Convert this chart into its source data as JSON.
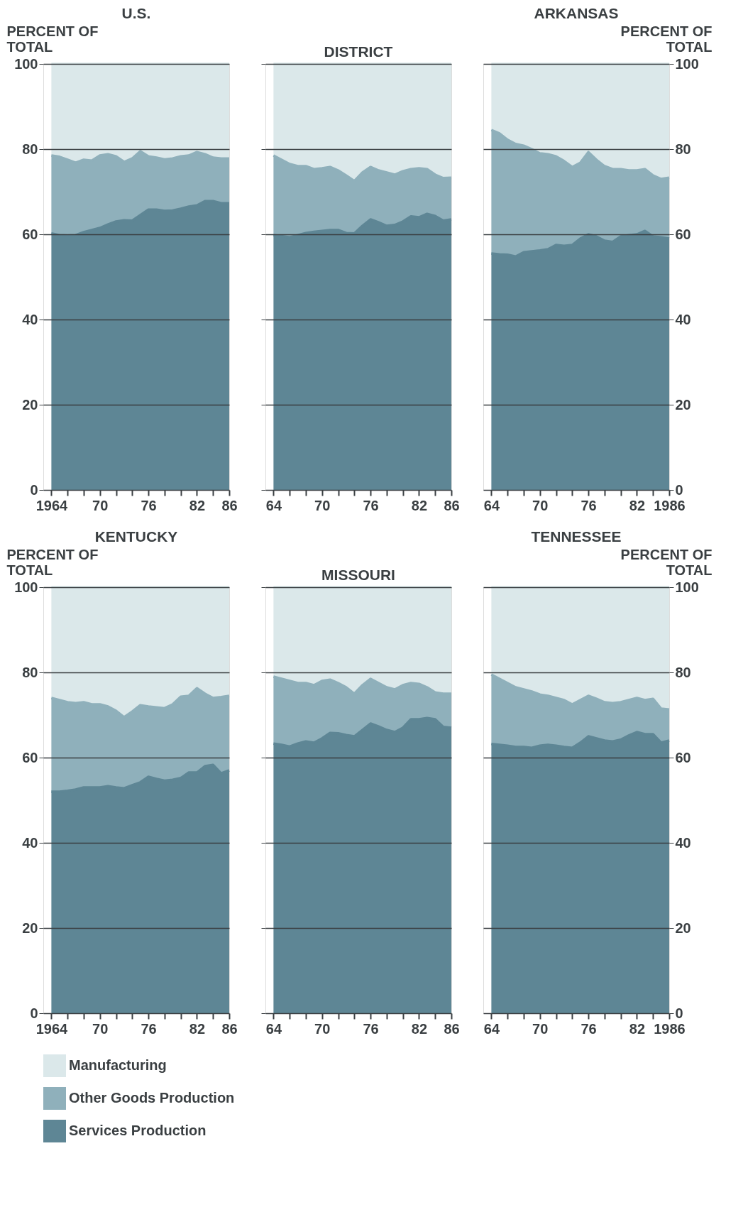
{
  "chart_data": [
    {
      "type": "area",
      "title": "U.S.",
      "ylabel": "PERCENT OF TOTAL",
      "stacked": true,
      "grid": "y",
      "x": [
        1964,
        1965,
        1966,
        1967,
        1968,
        1969,
        1970,
        1971,
        1972,
        1973,
        1974,
        1975,
        1976,
        1977,
        1978,
        1979,
        1980,
        1981,
        1982,
        1983,
        1984,
        1985,
        1986
      ],
      "xlim": [
        1963,
        1986
      ],
      "xticks": [
        {
          "value": 1964,
          "label": "1964"
        },
        {
          "value": 1966,
          "label": null
        },
        {
          "value": 1968,
          "label": null
        },
        {
          "value": 1970,
          "label": "70"
        },
        {
          "value": 1972,
          "label": null
        },
        {
          "value": 1974,
          "label": null
        },
        {
          "value": 1976,
          "label": "76"
        },
        {
          "value": 1978,
          "label": null
        },
        {
          "value": 1980,
          "label": null
        },
        {
          "value": 1982,
          "label": "82"
        },
        {
          "value": 1984,
          "label": null
        },
        {
          "value": 1986,
          "label": "86"
        }
      ],
      "ylim": [
        0,
        100
      ],
      "yticks": [
        0,
        20,
        40,
        60,
        80,
        100
      ],
      "series": [
        {
          "color": "#5e8695",
          "values": [
            60.2,
            59.8,
            59.7,
            59.8,
            60.5,
            61,
            61.5,
            62.3,
            63,
            63.3,
            63.2,
            64.5,
            65.8,
            65.8,
            65.5,
            65.6,
            66,
            66.5,
            66.8,
            67.8,
            67.8,
            67.3,
            67.3
          ]
        },
        {
          "color": "#8fb0bb",
          "values": [
            18.3,
            18.4,
            17.8,
            17.0,
            17.0,
            16.3,
            17.0,
            16.5,
            15.3,
            13.7,
            14.6,
            15.0,
            12.5,
            12.2,
            12.1,
            12.2,
            12.3,
            12.0,
            12.5,
            11.0,
            10.2,
            10.5,
            10.5
          ]
        },
        {
          "color": "#dbe8ea",
          "values": [
            21.5,
            21.8,
            22.5,
            23.2,
            22.5,
            22.7,
            21.5,
            21.2,
            21.7,
            23,
            22.2,
            20.5,
            21.7,
            22,
            22.4,
            22.2,
            21.7,
            21.5,
            20.7,
            21.2,
            22,
            22.2,
            22.2
          ]
        }
      ]
    },
    {
      "type": "area",
      "title": "DISTRICT",
      "stacked": true,
      "grid": "y",
      "tick_labels": "x",
      "x": [
        1964,
        1965,
        1966,
        1967,
        1968,
        1969,
        1970,
        1971,
        1972,
        1973,
        1974,
        1975,
        1976,
        1977,
        1978,
        1979,
        1980,
        1981,
        1982,
        1983,
        1984,
        1985,
        1986
      ],
      "xlim": [
        1963,
        1986
      ],
      "xticks": [
        {
          "value": 1964,
          "label": "64"
        },
        {
          "value": 1966,
          "label": null
        },
        {
          "value": 1968,
          "label": null
        },
        {
          "value": 1970,
          "label": "70"
        },
        {
          "value": 1972,
          "label": null
        },
        {
          "value": 1974,
          "label": null
        },
        {
          "value": 1976,
          "label": "76"
        },
        {
          "value": 1978,
          "label": null
        },
        {
          "value": 1980,
          "label": null
        },
        {
          "value": 1982,
          "label": "82"
        },
        {
          "value": 1984,
          "label": null
        },
        {
          "value": 1986,
          "label": "86"
        }
      ],
      "ylim": [
        0,
        100
      ],
      "yticks": [
        0,
        20,
        40,
        60,
        80,
        100
      ],
      "series": [
        {
          "color": "#5e8695",
          "values": [
            59.8,
            59.6,
            59.3,
            59.8,
            60.3,
            60.6,
            60.8,
            61,
            61,
            60.3,
            60.2,
            62,
            63.5,
            62.8,
            62,
            62.2,
            63,
            64.2,
            64,
            64.8,
            64.3,
            63.2,
            63.5
          ]
        },
        {
          "color": "#8fb0bb",
          "values": [
            18.7,
            17.9,
            17.2,
            16.2,
            15.7,
            14.7,
            14.7,
            14.8,
            14.0,
            13.5,
            12.3,
            12.5,
            12.3,
            12.2,
            12.5,
            11.8,
            11.8,
            11.1,
            11.5,
            10.5,
            9.7,
            10.0,
            9.8
          ]
        },
        {
          "color": "#dbe8ea",
          "values": [
            21.5,
            22.5,
            23.5,
            24,
            24,
            24.7,
            24.5,
            24.2,
            25,
            26.2,
            27.5,
            25.5,
            24.2,
            25,
            25.5,
            26,
            25.2,
            24.7,
            24.5,
            24.7,
            26,
            26.8,
            26.7
          ]
        }
      ]
    },
    {
      "type": "area",
      "title": "ARKANSAS",
      "y2label": "PERCENT OF TOTAL",
      "stacked": true,
      "grid": "y",
      "x": [
        1964,
        1965,
        1966,
        1967,
        1968,
        1969,
        1970,
        1971,
        1972,
        1973,
        1974,
        1975,
        1976,
        1977,
        1978,
        1979,
        1980,
        1981,
        1982,
        1983,
        1984,
        1985,
        1986
      ],
      "xlim": [
        1963,
        1986
      ],
      "xticks": [
        {
          "value": 1964,
          "label": "64"
        },
        {
          "value": 1966,
          "label": null
        },
        {
          "value": 1968,
          "label": null
        },
        {
          "value": 1970,
          "label": "70"
        },
        {
          "value": 1972,
          "label": null
        },
        {
          "value": 1974,
          "label": null
        },
        {
          "value": 1976,
          "label": "76"
        },
        {
          "value": 1978,
          "label": null
        },
        {
          "value": 1980,
          "label": null
        },
        {
          "value": 1982,
          "label": "82"
        },
        {
          "value": 1984,
          "label": null
        },
        {
          "value": 1986,
          "label": "1986"
        }
      ],
      "y2lim": [
        0,
        100
      ],
      "y2ticks": [
        0,
        20,
        40,
        60,
        80,
        100
      ],
      "series": [
        {
          "color": "#5e8695",
          "axis": "y2",
          "values": [
            55.5,
            55.3,
            55.2,
            54.8,
            55.8,
            56,
            56.2,
            56.5,
            57.5,
            57.3,
            57.5,
            59,
            60,
            59.5,
            58.5,
            58.2,
            59.5,
            59.8,
            60,
            60.8,
            59.5,
            59.3,
            59
          ]
        },
        {
          "color": "#8fb0bb",
          "axis": "y2",
          "values": [
            29.0,
            28.4,
            27.0,
            26.4,
            25.0,
            24.0,
            22.8,
            22.3,
            20.8,
            19.9,
            18.3,
            17.8,
            19.3,
            18.0,
            17.5,
            17.1,
            15.8,
            15.2,
            15.0,
            14.5,
            14.3,
            13.7,
            14.3
          ]
        },
        {
          "color": "#dbe8ea",
          "axis": "y2",
          "values": [
            15.5,
            16.3,
            17.8,
            18.8,
            19.2,
            20,
            21,
            21.2,
            21.7,
            22.8,
            24.2,
            23.2,
            20.7,
            22.5,
            24,
            24.7,
            24.7,
            25,
            25,
            24.7,
            26.2,
            27,
            26.7
          ]
        }
      ]
    },
    {
      "type": "area",
      "title": "KENTUCKY",
      "ylabel": "PERCENT OF TOTAL",
      "stacked": true,
      "grid": "y",
      "legend": "bottom",
      "x": [
        1964,
        1965,
        1966,
        1967,
        1968,
        1969,
        1970,
        1971,
        1972,
        1973,
        1974,
        1975,
        1976,
        1977,
        1978,
        1979,
        1980,
        1981,
        1982,
        1983,
        1984,
        1985,
        1986
      ],
      "xlim": [
        1963,
        1986
      ],
      "xticks": [
        {
          "value": 1964,
          "label": "1964"
        },
        {
          "value": 1966,
          "label": null
        },
        {
          "value": 1968,
          "label": null
        },
        {
          "value": 1970,
          "label": "70"
        },
        {
          "value": 1972,
          "label": null
        },
        {
          "value": 1974,
          "label": null
        },
        {
          "value": 1976,
          "label": "76"
        },
        {
          "value": 1978,
          "label": null
        },
        {
          "value": 1980,
          "label": null
        },
        {
          "value": 1982,
          "label": "82"
        },
        {
          "value": 1984,
          "label": null
        },
        {
          "value": 1986,
          "label": "86"
        }
      ],
      "ylim": [
        0,
        100
      ],
      "yticks": [
        0,
        20,
        40,
        60,
        80,
        100
      ],
      "series": [
        {
          "name": "Services Production",
          "color": "#5e8695",
          "values": [
            52,
            52,
            52.2,
            52.5,
            53,
            53,
            53,
            53.3,
            53,
            52.8,
            53.5,
            54.2,
            55.5,
            55,
            54.6,
            54.8,
            55.2,
            56.5,
            56.5,
            58,
            58.3,
            56.3,
            57
          ]
        },
        {
          "name": "Other Goods Production",
          "color": "#8fb0bb",
          "values": [
            22.0,
            21.5,
            20.8,
            20.3,
            20.0,
            19.5,
            19.5,
            18.7,
            18.0,
            16.7,
            17.3,
            18.1,
            16.5,
            16.8,
            17.0,
            17.7,
            19.1,
            18.0,
            19.8,
            17.0,
            15.7,
            17.9,
            17.5
          ]
        },
        {
          "name": "Manufacturing",
          "color": "#dbe8ea",
          "values": [
            26,
            26.5,
            27,
            27.2,
            27,
            27.5,
            27.5,
            28,
            29,
            30.5,
            29.2,
            27.7,
            28,
            28.2,
            28.4,
            27.5,
            25.7,
            25.5,
            23.7,
            25,
            26,
            25.8,
            25.5
          ]
        }
      ]
    },
    {
      "type": "area",
      "title": "MISSOURI",
      "stacked": true,
      "grid": "y",
      "tick_labels": "x",
      "x": [
        1964,
        1965,
        1966,
        1967,
        1968,
        1969,
        1970,
        1971,
        1972,
        1973,
        1974,
        1975,
        1976,
        1977,
        1978,
        1979,
        1980,
        1981,
        1982,
        1983,
        1984,
        1985,
        1986
      ],
      "xlim": [
        1963,
        1986
      ],
      "xticks": [
        {
          "value": 1964,
          "label": "64"
        },
        {
          "value": 1966,
          "label": null
        },
        {
          "value": 1968,
          "label": null
        },
        {
          "value": 1970,
          "label": "70"
        },
        {
          "value": 1972,
          "label": null
        },
        {
          "value": 1974,
          "label": null
        },
        {
          "value": 1976,
          "label": "76"
        },
        {
          "value": 1978,
          "label": null
        },
        {
          "value": 1980,
          "label": null
        },
        {
          "value": 1982,
          "label": "82"
        },
        {
          "value": 1984,
          "label": null
        },
        {
          "value": 1986,
          "label": "86"
        }
      ],
      "ylim": [
        0,
        100
      ],
      "yticks": [
        0,
        20,
        40,
        60,
        80,
        100
      ],
      "series": [
        {
          "color": "#5e8695",
          "values": [
            63.3,
            63,
            62.6,
            63.3,
            63.8,
            63.5,
            64.5,
            65.8,
            65.7,
            65.3,
            65,
            66.5,
            68,
            67.3,
            66.5,
            66,
            67,
            69,
            69,
            69.3,
            69,
            67.2,
            67
          ]
        },
        {
          "color": "#8fb0bb",
          "values": [
            15.7,
            15.5,
            15.4,
            14.2,
            13.7,
            13.5,
            13.5,
            12.5,
            11.8,
            11.2,
            10.0,
            10.5,
            10.5,
            10.2,
            10.0,
            10.0,
            10.0,
            8.5,
            8.3,
            7.2,
            6.3,
            7.8,
            8.0
          ]
        },
        {
          "color": "#dbe8ea",
          "values": [
            21,
            21.5,
            22,
            22.5,
            22.5,
            23,
            22,
            21.7,
            22.5,
            23.5,
            25,
            23,
            21.5,
            22.5,
            23.5,
            24,
            23,
            22.5,
            22.7,
            23.5,
            24.7,
            25,
            25
          ]
        }
      ]
    },
    {
      "type": "area",
      "title": "TENNESSEE",
      "y2label": "PERCENT OF TOTAL",
      "stacked": true,
      "grid": "y",
      "x": [
        1964,
        1965,
        1966,
        1967,
        1968,
        1969,
        1970,
        1971,
        1972,
        1973,
        1974,
        1975,
        1976,
        1977,
        1978,
        1979,
        1980,
        1981,
        1982,
        1983,
        1984,
        1985,
        1986
      ],
      "xlim": [
        1963,
        1986
      ],
      "xticks": [
        {
          "value": 1964,
          "label": "64"
        },
        {
          "value": 1966,
          "label": null
        },
        {
          "value": 1968,
          "label": null
        },
        {
          "value": 1970,
          "label": "70"
        },
        {
          "value": 1972,
          "label": null
        },
        {
          "value": 1974,
          "label": null
        },
        {
          "value": 1976,
          "label": "76"
        },
        {
          "value": 1978,
          "label": null
        },
        {
          "value": 1980,
          "label": null
        },
        {
          "value": 1982,
          "label": "82"
        },
        {
          "value": 1984,
          "label": null
        },
        {
          "value": 1986,
          "label": "1986"
        }
      ],
      "y2lim": [
        0,
        100
      ],
      "y2ticks": [
        0,
        20,
        40,
        60,
        80,
        100
      ],
      "series": [
        {
          "color": "#5e8695",
          "axis": "y2",
          "values": [
            63.2,
            63,
            62.8,
            62.5,
            62.5,
            62.3,
            62.8,
            63,
            62.8,
            62.5,
            62.3,
            63.5,
            65,
            64.5,
            64,
            63.8,
            64.2,
            65.2,
            66,
            65.5,
            65.5,
            63.5,
            64
          ]
        },
        {
          "color": "#8fb0bb",
          "axis": "y2",
          "values": [
            16.3,
            15.5,
            14.7,
            14.0,
            13.5,
            13.2,
            12.0,
            11.5,
            11.2,
            11.0,
            10.2,
            10.0,
            9.5,
            9.3,
            9.0,
            9.0,
            8.8,
            8.3,
            8.0,
            8.0,
            8.3,
            8.0,
            7.3
          ]
        },
        {
          "color": "#dbe8ea",
          "axis": "y2",
          "values": [
            20.5,
            21.5,
            22.5,
            23.5,
            24,
            24.5,
            25.2,
            25.5,
            26,
            26.5,
            27.5,
            26.5,
            25.5,
            26.2,
            27,
            27.2,
            27,
            26.5,
            26,
            26.5,
            26.2,
            28.5,
            28.7
          ]
        }
      ]
    }
  ]
}
